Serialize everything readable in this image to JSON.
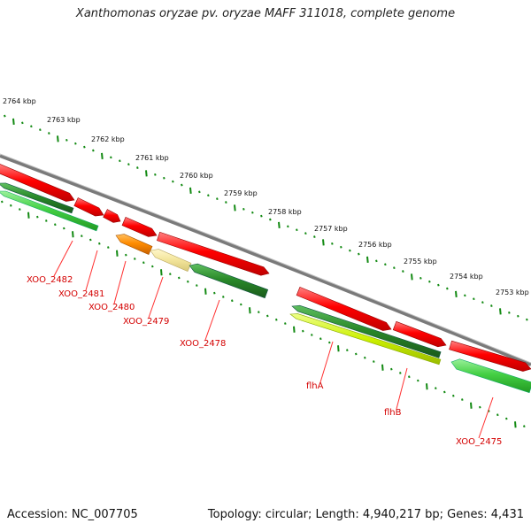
{
  "title": "Xanthomonas oryzae pv. oryzae MAFF 311018, complete genome",
  "footer": {
    "accession": "Accession: NC_007705",
    "topology": "Topology: circular; Length: 4,940,217 bp; Genes: 4,431"
  },
  "ticks": [
    "2764 kbp",
    "2763 kbp",
    "2762 kbp",
    "2761 kbp",
    "2760 kbp",
    "2759 kbp",
    "2758 kbp",
    "2757 kbp",
    "2756 kbp",
    "2755 kbp",
    "2754 kbp",
    "2753 kbp"
  ],
  "gene_labels": [
    "XOO_2482",
    "XOO_2481",
    "XOO_2480",
    "XOO_2479",
    "XOO_2478",
    "flhA",
    "flhB",
    "XOO_2475"
  ],
  "colors": {
    "forward_red": "#ff0000",
    "dark_green": "#2a8a2a",
    "light_green": "#55dd55",
    "orange": "#ff8c00",
    "pale_yellow": "#f2e49a",
    "lime": "#ccf000",
    "backbone": "#808080",
    "tick_green": "#138a13",
    "label_red": "#d40000"
  }
}
